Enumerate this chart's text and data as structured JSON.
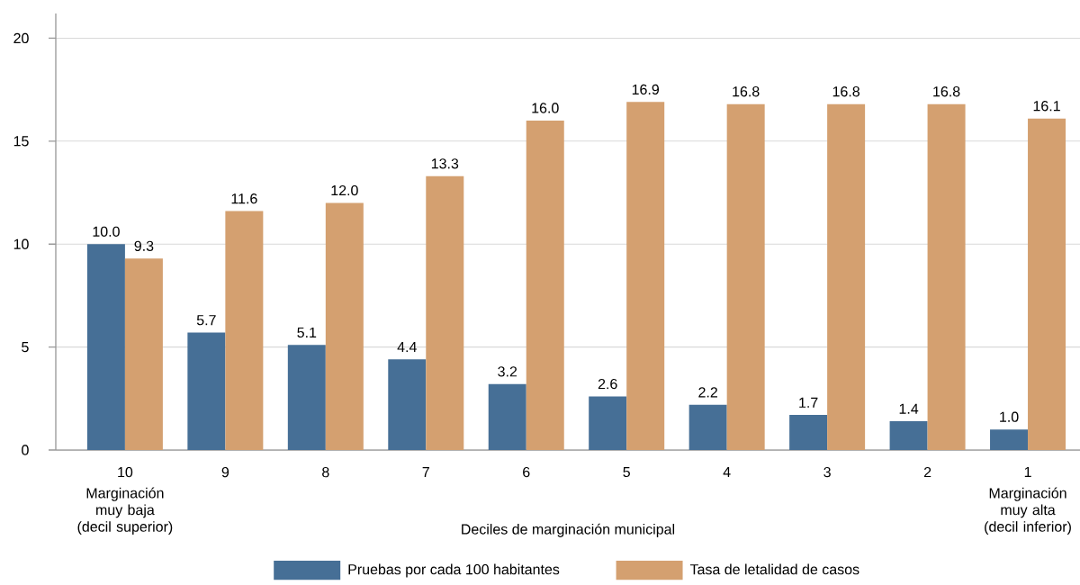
{
  "chart_data": {
    "type": "bar",
    "xlabel": "Deciles de marginación municipal",
    "categories": [
      "10",
      "9",
      "8",
      "7",
      "6",
      "5",
      "4",
      "3",
      "2",
      "1"
    ],
    "series": [
      {
        "name": "Pruebas por cada 100 habitantes",
        "color": "#466f96",
        "values": [
          10.0,
          5.7,
          5.1,
          4.4,
          3.2,
          2.6,
          2.2,
          1.7,
          1.4,
          1.0
        ],
        "value_labels": [
          "10.0",
          "5.7",
          "5.1",
          "4.4",
          "3.2",
          "2.6",
          "2.2",
          "1.7",
          "1.4",
          "1.0"
        ]
      },
      {
        "name": "Tasa de letalidad de casos",
        "color": "#d4a070",
        "values": [
          9.3,
          11.6,
          12.0,
          13.3,
          16.0,
          16.9,
          16.8,
          16.8,
          16.8,
          16.1
        ],
        "value_labels": [
          "9.3",
          "11.6",
          "12.0",
          "13.3",
          "16.0",
          "16.9",
          "16.8",
          "16.8",
          "16.8",
          "16.1"
        ]
      }
    ],
    "ylim": [
      0,
      21.2
    ],
    "yticks": [
      0,
      5,
      10,
      15,
      20
    ],
    "grid": "y",
    "legend": "bottom",
    "annotations": [
      "Marginación muy baja (decil superior)",
      "Marginación muy alta (decil inferior)"
    ]
  }
}
